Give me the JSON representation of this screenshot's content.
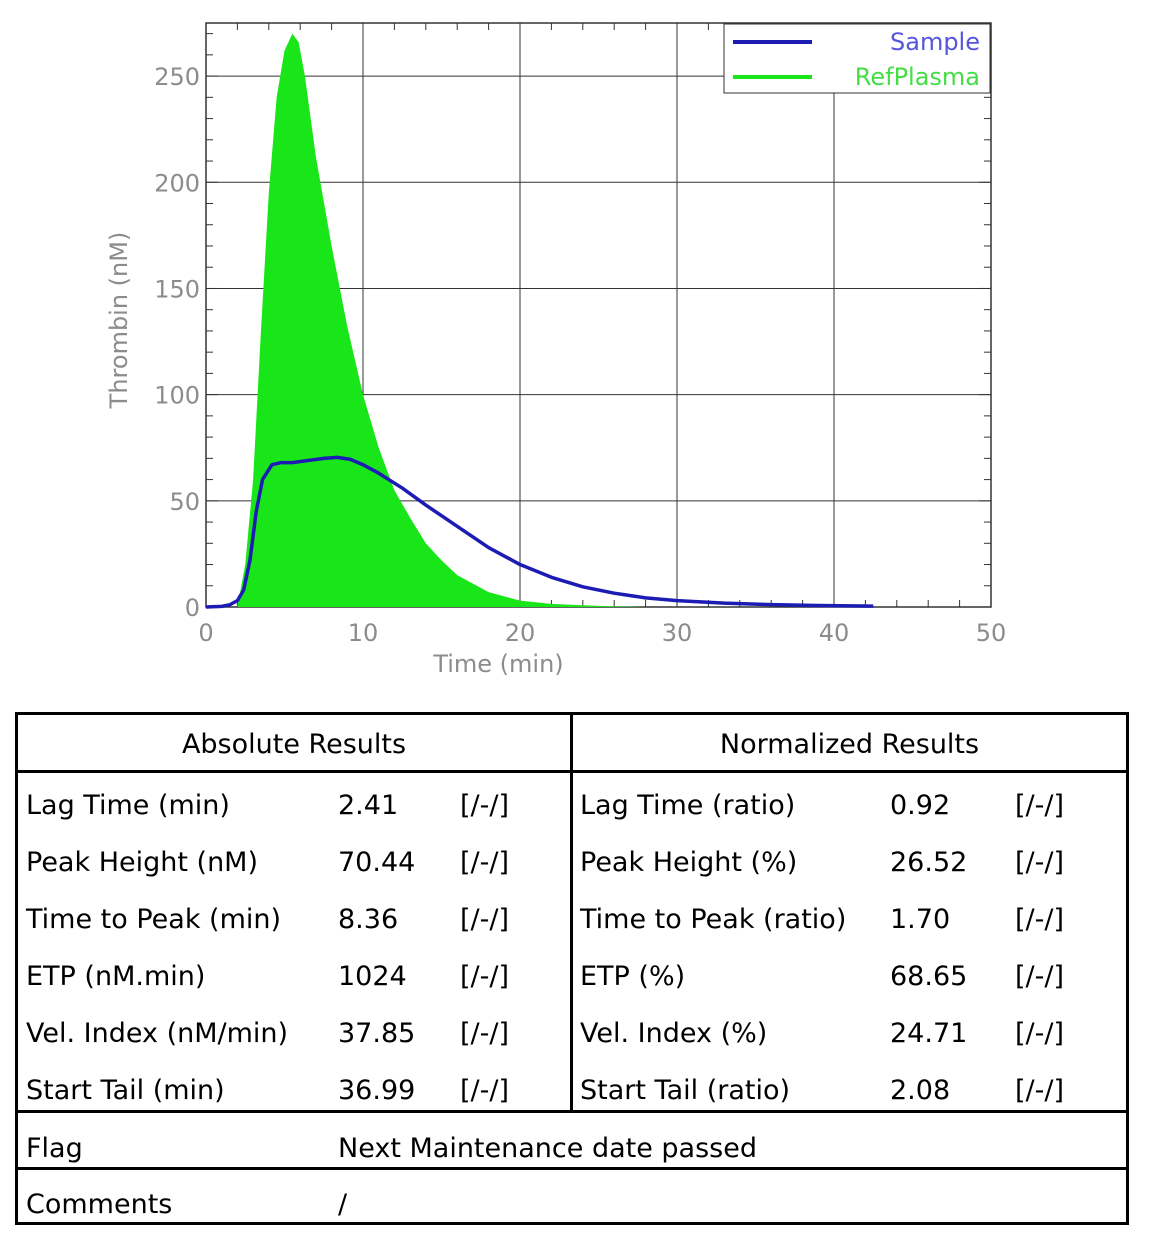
{
  "chart_data": {
    "type": "area",
    "xlabel": "Time (min)",
    "ylabel": "Thrombin (nM)",
    "xlim": [
      0,
      50
    ],
    "ylim": [
      0,
      275
    ],
    "x_ticks": [
      0,
      10,
      20,
      30,
      40,
      50
    ],
    "y_ticks": [
      0,
      50,
      100,
      150,
      200,
      250
    ],
    "grid": true,
    "legend_position": "top-right",
    "series": [
      {
        "name": "Sample",
        "style": "line",
        "color": "#1c1cb4",
        "x": [
          0,
          1,
          1.5,
          2,
          2.4,
          2.8,
          3.2,
          3.6,
          4.2,
          4.8,
          5.5,
          6.5,
          7.5,
          8.36,
          9.2,
          10,
          11,
          12.5,
          14,
          16,
          18,
          20,
          22,
          24,
          26,
          28,
          30,
          33,
          36,
          39,
          42.5
        ],
        "y": [
          0,
          0.3,
          1,
          3,
          8,
          22,
          45,
          60,
          67,
          68,
          68,
          69,
          70,
          70.44,
          69.5,
          67,
          63,
          56,
          48,
          38,
          28,
          20,
          14,
          9.5,
          6.5,
          4.3,
          3,
          1.8,
          1.1,
          0.7,
          0.4
        ]
      },
      {
        "name": "RefPlasma",
        "style": "area",
        "color": "#19e619",
        "x": [
          0,
          2,
          2.5,
          3,
          3.5,
          4,
          4.5,
          5,
          5.5,
          5.9,
          6.3,
          7,
          8,
          9,
          10,
          11,
          12,
          13,
          14,
          15,
          16,
          17,
          18,
          19,
          20,
          22,
          24,
          26,
          28
        ],
        "y": [
          0,
          0,
          20,
          60,
          130,
          195,
          240,
          262,
          270,
          266,
          250,
          212,
          170,
          132,
          100,
          75,
          55,
          42,
          30,
          22,
          15,
          11,
          7,
          5,
          3,
          1.5,
          0.8,
          0.3,
          0
        ]
      }
    ]
  },
  "results": {
    "absolute_title": "Absolute Results",
    "normalized_title": "Normalized Results",
    "rows": [
      {
        "abs_label": "Lag Time (min)",
        "abs_value": "2.41",
        "abs_flag": "[/-/]",
        "norm_label": "Lag Time (ratio)",
        "norm_value": "0.92",
        "norm_flag": "[/-/]"
      },
      {
        "abs_label": "Peak Height (nM)",
        "abs_value": "70.44",
        "abs_flag": "[/-/]",
        "norm_label": "Peak Height (%)",
        "norm_value": "26.52",
        "norm_flag": "[/-/]"
      },
      {
        "abs_label": "Time to Peak (min)",
        "abs_value": "8.36",
        "abs_flag": "[/-/]",
        "norm_label": "Time to Peak (ratio)",
        "norm_value": "1.70",
        "norm_flag": "[/-/]"
      },
      {
        "abs_label": "ETP (nM.min)",
        "abs_value": "1024",
        "abs_flag": "[/-/]",
        "norm_label": "ETP (%)",
        "norm_value": "68.65",
        "norm_flag": "[/-/]"
      },
      {
        "abs_label": "Vel. Index (nM/min)",
        "abs_value": "37.85",
        "abs_flag": "[/-/]",
        "norm_label": "Vel. Index (%)",
        "norm_value": "24.71",
        "norm_flag": "[/-/]"
      },
      {
        "abs_label": "Start Tail (min)",
        "abs_value": "36.99",
        "abs_flag": "[/-/]",
        "norm_label": "Start Tail (ratio)",
        "norm_value": "2.08",
        "norm_flag": "[/-/]"
      }
    ],
    "flag_label": "Flag",
    "flag_value": "Next Maintenance date passed",
    "comments_label": "Comments",
    "comments_value": "/"
  }
}
